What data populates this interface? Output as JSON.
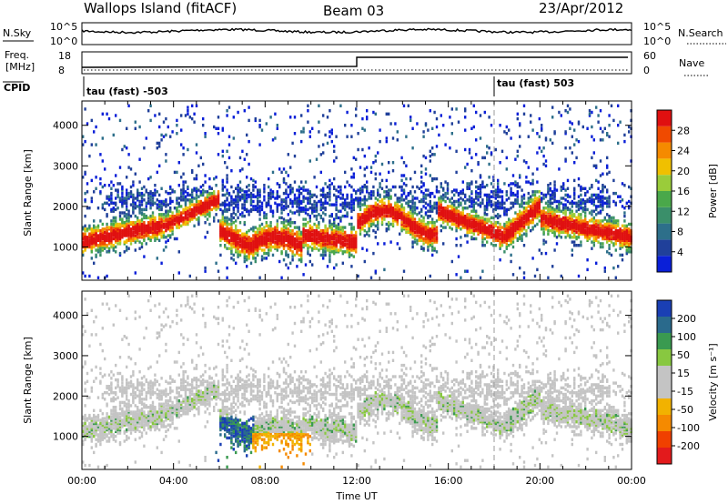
{
  "header": {
    "station": "Wallops Island (fitACF)",
    "beam": "Beam 03",
    "date": "23/Apr/2012"
  },
  "status_panel": {
    "nsky_label": "N.Sky",
    "nsky_ticks": [
      "10^5",
      "10^0"
    ],
    "nsearch_label": "N.Search",
    "nsearch_ticks": [
      "10^5",
      "10^0"
    ],
    "freq_label_1": "Freq.",
    "freq_label_2": "[MHz]",
    "freq_ticks": [
      "18",
      "8"
    ],
    "nave_label": "Nave",
    "nave_ticks": [
      "60",
      "0"
    ],
    "cpid_label": "CPID",
    "cpid_segments": [
      {
        "label": "tau (fast) -503",
        "start_hour": 0
      },
      {
        "label": "tau (fast) 503",
        "start_hour": 18
      }
    ]
  },
  "chart_data": [
    {
      "type": "heatmap",
      "quantity": "power",
      "ylabel": "Slant Range [km]",
      "xlabel": "",
      "xlim": [
        0,
        24
      ],
      "ylim": [
        180,
        4600
      ],
      "yticks": [
        "1000",
        "2000",
        "3000",
        "4000"
      ],
      "colorbar_label": "Power [dB]",
      "colorbar_ticks": [
        "28",
        "24",
        "20",
        "16",
        "12",
        "8",
        "4"
      ],
      "colorbar_range": [
        0,
        32
      ]
    },
    {
      "type": "heatmap",
      "quantity": "velocity",
      "ylabel": "Slant Range [km]",
      "xlabel": "Time UT",
      "xlim": [
        0,
        24
      ],
      "ylim": [
        180,
        4600
      ],
      "yticks": [
        "1000",
        "2000",
        "3000",
        "4000"
      ],
      "xticks": [
        "00:00",
        "04:00",
        "08:00",
        "12:00",
        "16:00",
        "20:00",
        "00:00"
      ],
      "colorbar_label": "Velocity [m s⁻¹]",
      "colorbar_ticks": [
        "200",
        "100",
        "50",
        "15",
        "-15",
        "-50",
        "-100",
        "-200"
      ]
    }
  ],
  "colors": {
    "power_scale": [
      "#0a1fd8",
      "#20409a",
      "#2d6f8a",
      "#3a8f6a",
      "#4aa84a",
      "#9acc3a",
      "#f0c000",
      "#f58a00",
      "#f04a00",
      "#e01010"
    ],
    "velocity_scale": [
      "#e31a1c",
      "#f04000",
      "#f58a00",
      "#f2b200",
      "#c4c4c4",
      "#c4c4c4",
      "#88c840",
      "#3a9a50",
      "#2a6a8c",
      "#1a3fb4"
    ],
    "gate_marker": "#000000"
  }
}
